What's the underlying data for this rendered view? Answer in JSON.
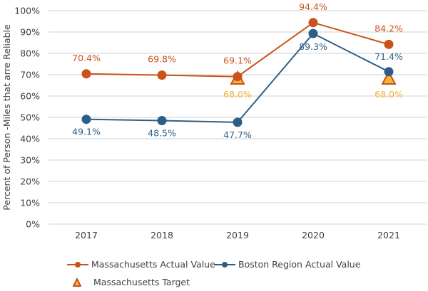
{
  "chart_data": {
    "type": "line",
    "categories": [
      "2017",
      "2018",
      "2019",
      "2020",
      "2021"
    ],
    "ylabel": "Percent of Person  -Miles that arre Reliable",
    "ylim": [
      0,
      100
    ],
    "yticks": [
      "0%",
      "10%",
      "20%",
      "30%",
      "40%",
      "50%",
      "60%",
      "70%",
      "80%",
      "90%",
      "100%"
    ],
    "grid": true,
    "legend_position": "bottom",
    "series": [
      {
        "name": "Massachusetts Actual Value",
        "values": [
          70.4,
          69.8,
          69.1,
          94.4,
          84.2
        ],
        "labels": [
          "70.4%",
          "69.8%",
          "69.1%",
          "94.4%",
          "84.2%"
        ],
        "color": "#c9531a",
        "marker": "circle"
      },
      {
        "name": "Boston Region Actual Value",
        "values": [
          49.1,
          48.5,
          47.7,
          89.3,
          71.4
        ],
        "labels": [
          "49.1%",
          "48.5%",
          "47.7%",
          "89.3%",
          "71.4%"
        ],
        "color": "#2d5f86",
        "marker": "circle"
      },
      {
        "name": "Massachusetts Target",
        "values": [
          null,
          null,
          68.0,
          null,
          68.0
        ],
        "labels": [
          "",
          "",
          "68.0%",
          "",
          "68.0%"
        ],
        "color": "#f5b335",
        "marker": "triangle"
      }
    ]
  }
}
